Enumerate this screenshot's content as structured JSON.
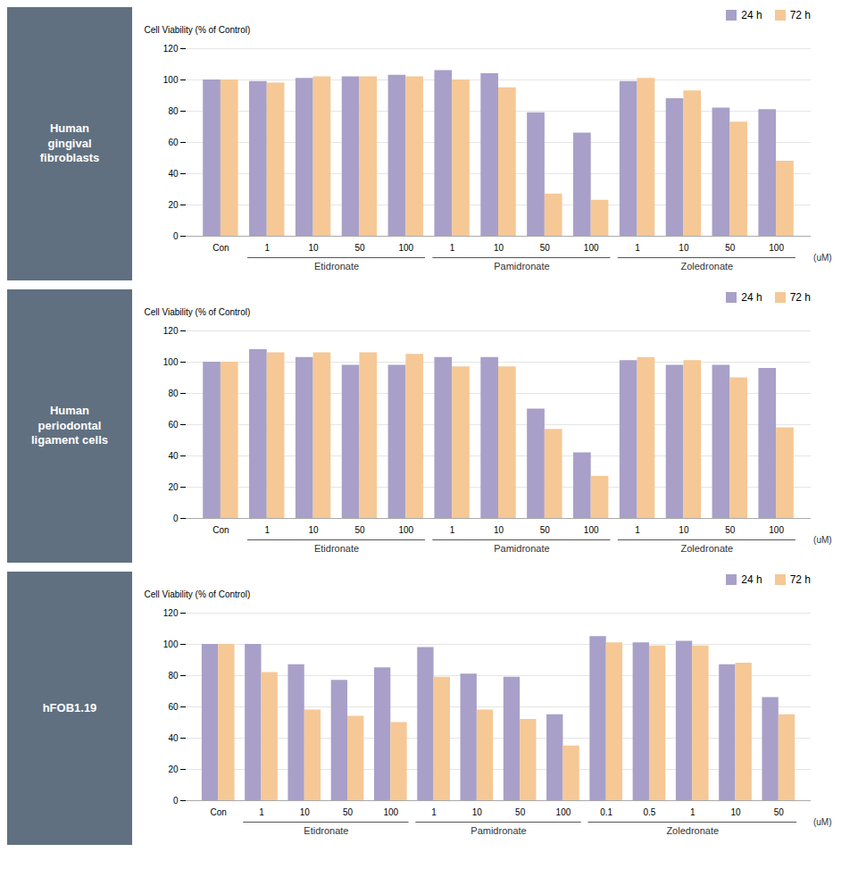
{
  "chart_data": [
    {
      "type": "bar",
      "title": "Human\ngingival\nfibroblasts",
      "categories": [
        "Con",
        "1",
        "10",
        "50",
        "100",
        "1",
        "10",
        "50",
        "100",
        "1",
        "10",
        "50",
        "100"
      ],
      "series": [
        {
          "name": "24 h",
          "color": "#a8a0c8",
          "values": [
            100,
            99,
            101,
            102,
            103,
            106,
            104,
            79,
            66,
            99,
            88,
            82,
            81
          ]
        },
        {
          "name": "72 h",
          "color": "#f5c896",
          "values": [
            100,
            98,
            102,
            102,
            102,
            100,
            95,
            27,
            23,
            101,
            93,
            73,
            48
          ]
        }
      ],
      "groups": [
        {
          "name": "Etidronate",
          "start": 1,
          "end": 4
        },
        {
          "name": "Pamidronate",
          "start": 5,
          "end": 8
        },
        {
          "name": "Zoledronate",
          "start": 9,
          "end": 12
        }
      ],
      "xlabel": "(uM)",
      "ylabel": "Cell Viability (% of Control)",
      "ylim": [
        0,
        120
      ],
      "yticks": [
        0,
        20,
        40,
        60,
        80,
        100,
        120
      ],
      "grid": true,
      "legend": "upper right"
    },
    {
      "type": "bar",
      "title": "Human\nperiodontal\nligament cells",
      "categories": [
        "Con",
        "1",
        "10",
        "50",
        "100",
        "1",
        "10",
        "50",
        "100",
        "1",
        "10",
        "50",
        "100"
      ],
      "series": [
        {
          "name": "24 h",
          "color": "#a8a0c8",
          "values": [
            100,
            108,
            103,
            98,
            98,
            103,
            103,
            70,
            42,
            101,
            98,
            98,
            96
          ]
        },
        {
          "name": "72 h",
          "color": "#f5c896",
          "values": [
            100,
            106,
            106,
            106,
            105,
            97,
            97,
            57,
            27,
            103,
            101,
            90,
            58
          ]
        }
      ],
      "groups": [
        {
          "name": "Etidronate",
          "start": 1,
          "end": 4
        },
        {
          "name": "Pamidronate",
          "start": 5,
          "end": 8
        },
        {
          "name": "Zoledronate",
          "start": 9,
          "end": 12
        }
      ],
      "xlabel": "(uM)",
      "ylabel": "Cell Viability (% of Control)",
      "ylim": [
        0,
        120
      ],
      "yticks": [
        0,
        20,
        40,
        60,
        80,
        100,
        120
      ],
      "grid": true,
      "legend": "upper right"
    },
    {
      "type": "bar",
      "title": "hFOB1.19",
      "categories": [
        "Con",
        "1",
        "10",
        "50",
        "100",
        "1",
        "10",
        "50",
        "100",
        "0.1",
        "0.5",
        "1",
        "10",
        "50"
      ],
      "series": [
        {
          "name": "24 h",
          "color": "#a8a0c8",
          "values": [
            100,
            100,
            87,
            77,
            85,
            98,
            81,
            79,
            55,
            105,
            101,
            102,
            87,
            66
          ]
        },
        {
          "name": "72 h",
          "color": "#f5c896",
          "values": [
            100,
            82,
            58,
            54,
            50,
            79,
            58,
            52,
            35,
            101,
            99,
            99,
            88,
            55
          ]
        }
      ],
      "groups": [
        {
          "name": "Etidronate",
          "start": 1,
          "end": 4
        },
        {
          "name": "Pamidronate",
          "start": 5,
          "end": 8
        },
        {
          "name": "Zoledronate",
          "start": 9,
          "end": 13
        }
      ],
      "xlabel": "(uM)",
      "ylabel": "Cell Viability (% of Control)",
      "ylim": [
        0,
        120
      ],
      "yticks": [
        0,
        20,
        40,
        60,
        80,
        100,
        120
      ],
      "grid": true,
      "legend": "upper right"
    }
  ]
}
